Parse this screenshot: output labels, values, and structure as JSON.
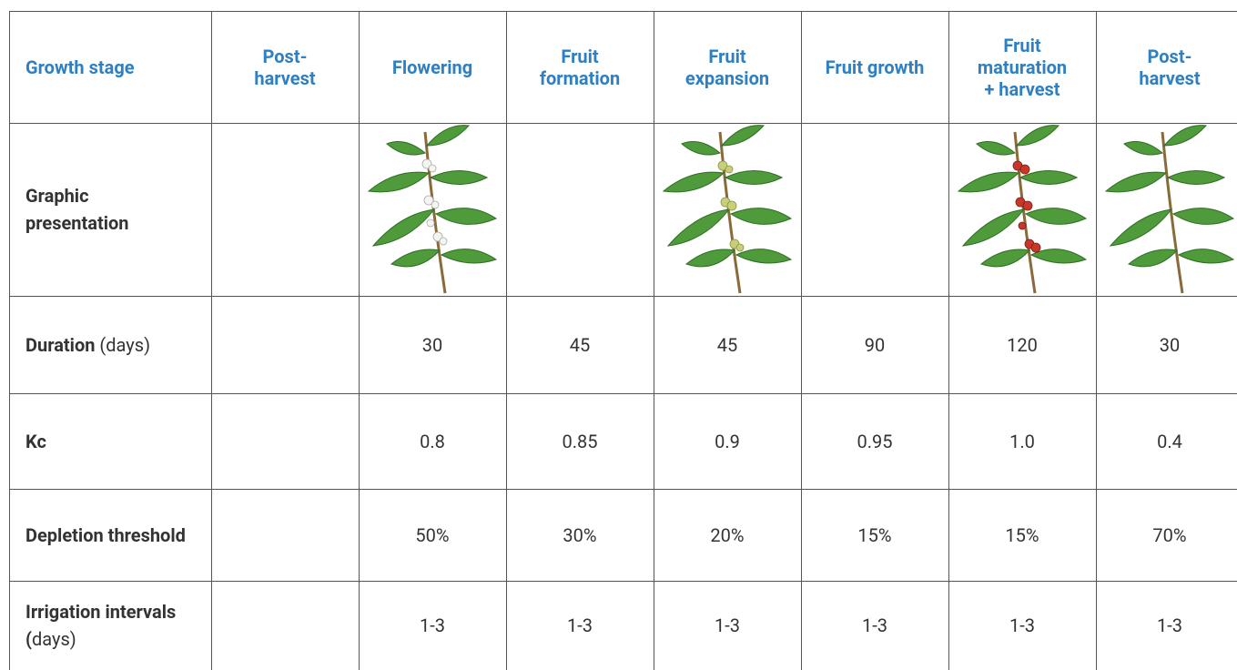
{
  "table": {
    "header": [
      [
        "Growth stage"
      ],
      [
        "Post-",
        "harvest"
      ],
      [
        "Flowering"
      ],
      [
        "Fruit",
        "formation"
      ],
      [
        "Fruit",
        "expansion"
      ],
      [
        "Fruit growth"
      ],
      [
        "Fruit",
        "maturation",
        "+ harvest"
      ],
      [
        "Post-",
        "harvest"
      ]
    ],
    "rows": [
      {
        "label": {
          "bold": "Graphic presentation"
        }
      },
      {
        "label": {
          "bold": "Duration",
          "normal": " (days)"
        },
        "cells": [
          "30",
          "45",
          "45",
          "90",
          "120",
          "30"
        ]
      },
      {
        "label": {
          "bold": "Kc"
        },
        "cells": [
          "0.8",
          "0.85",
          "0.9",
          "0.95",
          "1.0",
          "0.4"
        ]
      },
      {
        "label": {
          "bold": "Depletion threshold"
        },
        "cells": [
          "50%",
          "30%",
          "20%",
          "15%",
          "15%",
          "70%"
        ]
      },
      {
        "label": {
          "bold": "Irrigation intervals (",
          "normal": "days)"
        },
        "cells": [
          "1-3",
          "1-3",
          "1-3",
          "1-3",
          "1-3",
          "1-3"
        ]
      }
    ]
  }
}
